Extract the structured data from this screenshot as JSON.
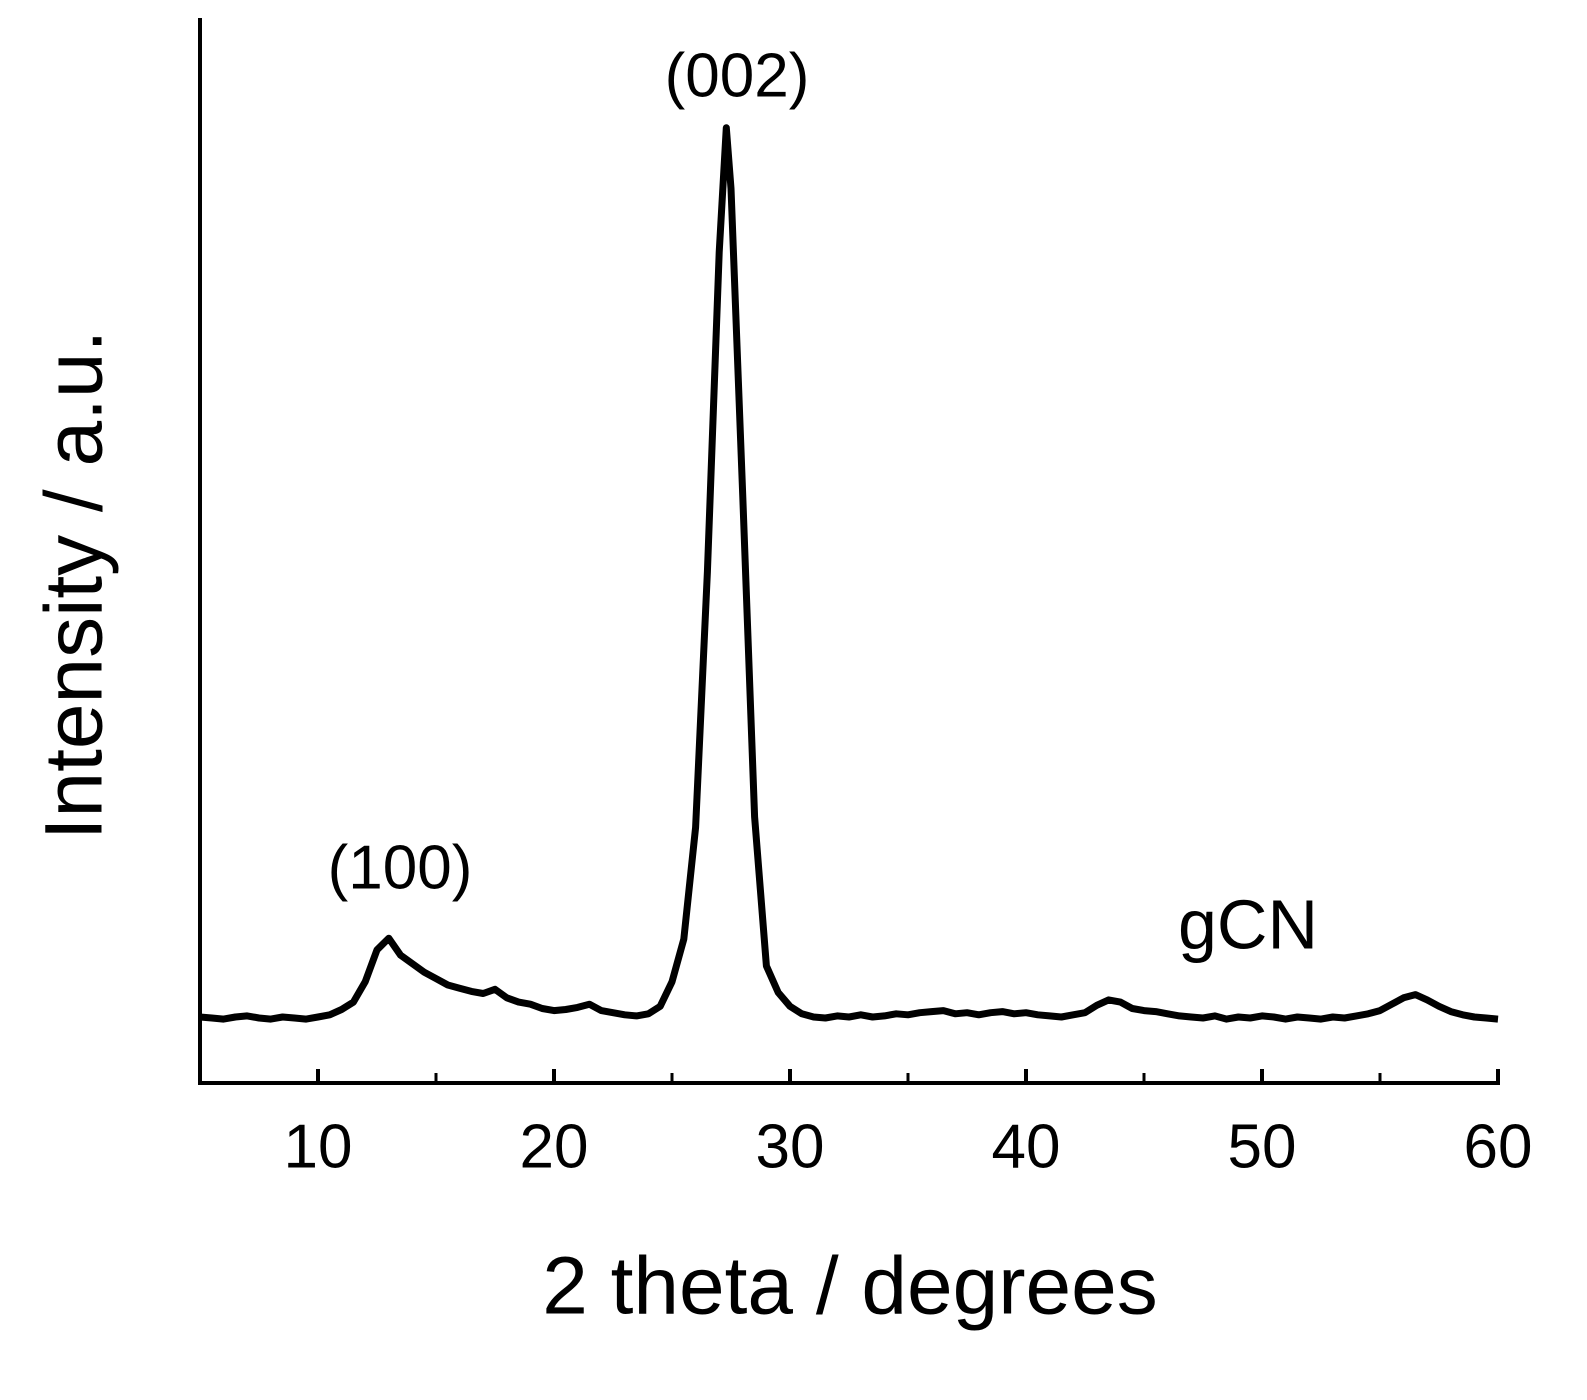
{
  "chart_data": {
    "type": "line",
    "x_label": "2 theta / degrees",
    "y_label": "Intensity / a.u.",
    "annotations": [
      "(100)",
      "(002)",
      "gCN"
    ],
    "color": "#000000",
    "x": [
      5,
      5.5,
      6,
      6.5,
      7,
      7.5,
      8,
      8.5,
      9,
      9.5,
      10,
      10.5,
      11,
      11.5,
      12,
      12.5,
      13,
      13.5,
      14,
      14.5,
      15,
      15.5,
      16,
      16.5,
      17,
      17.5,
      18,
      18.5,
      19,
      19.5,
      20,
      20.5,
      21,
      21.5,
      22,
      22.5,
      23,
      23.5,
      24,
      24.5,
      25,
      25.5,
      26,
      26.5,
      27,
      27.3,
      27.5,
      28,
      28.5,
      29,
      29.5,
      30,
      30.5,
      31,
      31.5,
      32,
      32.5,
      33,
      33.5,
      34,
      34.5,
      35,
      35.5,
      36,
      36.5,
      37,
      37.5,
      38,
      38.5,
      39,
      39.5,
      40,
      40.5,
      41,
      41.5,
      42,
      42.5,
      43,
      43.5,
      44,
      44.5,
      45,
      45.5,
      46,
      46.5,
      47,
      47.5,
      48,
      48.5,
      49,
      49.5,
      50,
      50.5,
      51,
      51.5,
      52,
      52.5,
      53,
      53.5,
      54,
      54.5,
      55,
      55.5,
      56,
      56.5,
      57,
      57.5,
      58,
      58.5,
      59,
      59.5,
      60
    ],
    "values": [
      6.2,
      6.1,
      6.0,
      6.2,
      6.3,
      6.1,
      6.0,
      6.2,
      6.1,
      6.0,
      6.2,
      6.4,
      6.9,
      7.6,
      9.5,
      12.5,
      13.6,
      12.0,
      11.2,
      10.4,
      9.8,
      9.2,
      8.9,
      8.6,
      8.4,
      8.8,
      8.0,
      7.6,
      7.4,
      7.0,
      6.8,
      6.9,
      7.1,
      7.4,
      6.8,
      6.6,
      6.4,
      6.3,
      6.5,
      7.2,
      9.5,
      13.5,
      24,
      48,
      78,
      89.7,
      84,
      55,
      25,
      11,
      8.5,
      7.2,
      6.5,
      6.2,
      6.1,
      6.3,
      6.2,
      6.4,
      6.2,
      6.3,
      6.5,
      6.4,
      6.6,
      6.7,
      6.8,
      6.5,
      6.6,
      6.4,
      6.6,
      6.7,
      6.5,
      6.6,
      6.4,
      6.3,
      6.2,
      6.4,
      6.6,
      7.3,
      7.8,
      7.6,
      7.0,
      6.8,
      6.7,
      6.5,
      6.3,
      6.2,
      6.1,
      6.3,
      6.0,
      6.2,
      6.1,
      6.3,
      6.2,
      6.0,
      6.2,
      6.1,
      6.0,
      6.2,
      6.1,
      6.3,
      6.5,
      6.8,
      7.4,
      8.0,
      8.3,
      7.8,
      7.2,
      6.7,
      6.4,
      6.2,
      6.1,
      6.0
    ],
    "xlim": [
      5,
      60
    ],
    "xticks": [
      10,
      20,
      30,
      40,
      50,
      60
    ],
    "xminorticks": [
      15,
      25,
      35,
      45,
      55
    ],
    "ylim": [
      0,
      100
    ]
  }
}
